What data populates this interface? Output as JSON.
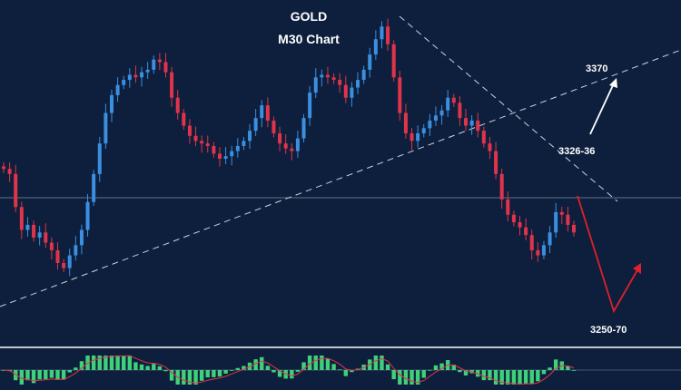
{
  "chart_data": {
    "type": "candlestick",
    "title": "GOLD",
    "subtitle": "M30 Chart",
    "grid": false,
    "legend": "none",
    "colors": {
      "background": "#0d1f3c",
      "bull_candle": "#3b8fe0",
      "bear_candle": "#e0344a",
      "trendline": "#c9d3e0",
      "target_up": "#ffffff",
      "target_down": "#e0202a",
      "osc_bar": "#3fd07a",
      "osc_signal": "#e0344a",
      "ref_line": "#7f8ea6"
    },
    "close_series": [
      3330,
      3328,
      3315,
      3306,
      3308,
      3303,
      3305,
      3301,
      3298,
      3293,
      3291,
      3296,
      3300,
      3306,
      3317,
      3328,
      3340,
      3352,
      3359,
      3363,
      3365,
      3367,
      3366,
      3368,
      3369,
      3373,
      3372,
      3368,
      3358,
      3352,
      3347,
      3343,
      3341,
      3340,
      3339,
      3336,
      3334,
      3335,
      3337,
      3339,
      3341,
      3345,
      3350,
      3355,
      3349,
      3344,
      3340,
      3338,
      3337,
      3342,
      3350,
      3360,
      3366,
      3367,
      3366,
      3365,
      3363,
      3358,
      3362,
      3365,
      3369,
      3375,
      3381,
      3386,
      3379,
      3366,
      3352,
      3344,
      3341,
      3344,
      3346,
      3349,
      3351,
      3353,
      3358,
      3356,
      3350,
      3347,
      3349,
      3345,
      3340,
      3337,
      3328,
      3318,
      3312,
      3309,
      3307,
      3304,
      3298,
      3296,
      3300,
      3305,
      3313,
      3312,
      3308,
      3305
    ],
    "annotations": {
      "level_upper": "3370",
      "level_mid": "3326-36",
      "level_lower": "3250-70"
    }
  }
}
